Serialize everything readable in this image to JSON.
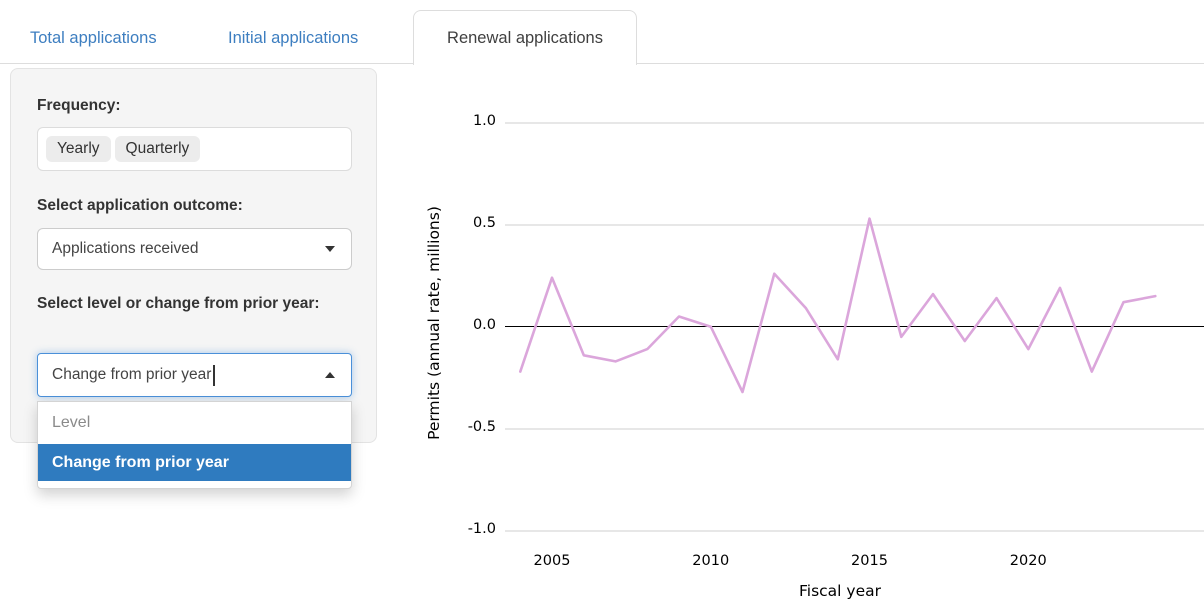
{
  "tabs": [
    {
      "label": "Total applications",
      "active": false
    },
    {
      "label": "Initial applications",
      "active": false
    },
    {
      "label": "Renewal applications",
      "active": true
    }
  ],
  "sidebar": {
    "frequency": {
      "label": "Frequency:",
      "options": [
        "Yearly",
        "Quarterly"
      ]
    },
    "outcome": {
      "label": "Select application outcome:",
      "selected": "Applications received"
    },
    "measure": {
      "label": "Select level or change from prior year:",
      "input_value": "Change from prior year",
      "options": [
        {
          "label": "Level",
          "selected": false
        },
        {
          "label": "Change from prior year",
          "selected": true
        }
      ]
    }
  },
  "colors": {
    "link_blue": "#3d7ec0",
    "selection_blue": "#2f7bbf",
    "focus_border_blue": "#4a90d9",
    "line_pink": "#dba6db"
  },
  "chart_data": {
    "type": "line",
    "title": "",
    "xlabel": "Fiscal year",
    "ylabel": "Permits (annual rate, millions)",
    "x": [
      2004,
      2005,
      2006,
      2007,
      2008,
      2009,
      2010,
      2011,
      2012,
      2013,
      2014,
      2015,
      2016,
      2017,
      2018,
      2019,
      2020,
      2021,
      2022,
      2023,
      2024
    ],
    "series": [
      {
        "name": "Change from prior year",
        "color": "#dba6db",
        "values": [
          -0.22,
          0.24,
          -0.14,
          -0.17,
          -0.11,
          0.05,
          0.0,
          -0.32,
          0.26,
          0.09,
          -0.16,
          0.53,
          -0.05,
          0.16,
          -0.07,
          0.14,
          -0.11,
          0.19,
          -0.22,
          0.12,
          0.15
        ]
      }
    ],
    "ylim": [
      -1.0,
      1.0
    ],
    "yticks": [
      1.0,
      0.5,
      0.0,
      -0.5,
      -1.0
    ],
    "xticks": [
      2005,
      2010,
      2015,
      2020
    ],
    "grid": "horizontal-only",
    "zero_line": true,
    "legend": "none"
  }
}
